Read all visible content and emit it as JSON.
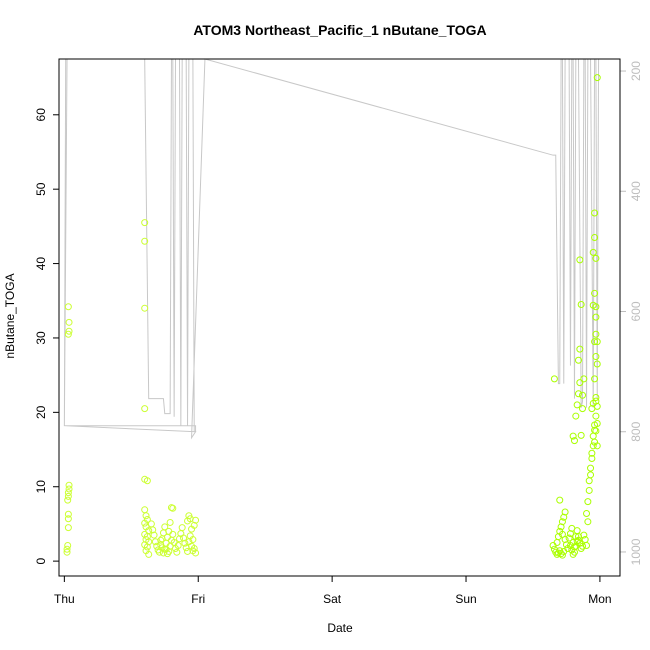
{
  "chart_data": {
    "type": "scatter",
    "title": "ATOM3 Northeast_Pacific_1 nButane_TOGA",
    "xlabel": "Date",
    "ylabel": "nButane_TOGA",
    "x_ticks": [
      "Thu",
      "Fri",
      "Sat",
      "Sun",
      "Mon"
    ],
    "x_tick_values": [
      0,
      1,
      2,
      3,
      4
    ],
    "xlim": [
      -0.04,
      4.15
    ],
    "ylim": [
      -2,
      67.5
    ],
    "y_ticks": [
      0,
      10,
      20,
      30,
      40,
      50,
      60
    ],
    "y2_ticks": [
      200,
      400,
      600,
      800,
      1000
    ],
    "y2lim": [
      1040,
      180
    ],
    "grid": false,
    "colors": {
      "point_stroke": "#aaff00",
      "point_stroke_alt": "#ccff33",
      "secondary_line": "#c8c8c8",
      "secondary_axis": "#bdbdbd"
    },
    "series": [
      {
        "type": "scatter",
        "x_unit": "days since Thu 00:00",
        "points": [
          [
            0.02,
            1.2
          ],
          [
            0.02,
            1.6
          ],
          [
            0.025,
            2.1
          ],
          [
            0.03,
            4.5
          ],
          [
            0.03,
            5.7
          ],
          [
            0.03,
            6.3
          ],
          [
            0.025,
            8.2
          ],
          [
            0.03,
            8.7
          ],
          [
            0.03,
            9.2
          ],
          [
            0.035,
            9.7
          ],
          [
            0.035,
            10.2
          ],
          [
            0.03,
            30.5
          ],
          [
            0.035,
            30.9
          ],
          [
            0.035,
            32.1
          ],
          [
            0.03,
            34.2
          ],
          [
            0.6,
            45.5
          ],
          [
            0.6,
            43.0
          ],
          [
            0.6,
            34.0
          ],
          [
            0.6,
            20.5
          ],
          [
            0.6,
            11.0
          ],
          [
            0.62,
            10.8
          ],
          [
            0.6,
            6.9
          ],
          [
            0.61,
            6.1
          ],
          [
            0.62,
            5.6
          ],
          [
            0.6,
            5.1
          ],
          [
            0.61,
            4.6
          ],
          [
            0.63,
            4.1
          ],
          [
            0.6,
            3.6
          ],
          [
            0.62,
            3.3
          ],
          [
            0.61,
            2.9
          ],
          [
            0.63,
            2.6
          ],
          [
            0.6,
            2.2
          ],
          [
            0.62,
            1.9
          ],
          [
            0.61,
            1.4
          ],
          [
            0.63,
            0.9
          ],
          [
            0.65,
            5.0
          ],
          [
            0.66,
            4.2
          ],
          [
            0.67,
            3.5
          ],
          [
            0.68,
            2.6
          ],
          [
            0.69,
            2.0
          ],
          [
            0.7,
            1.5
          ],
          [
            0.71,
            1.2
          ],
          [
            0.72,
            2.2
          ],
          [
            0.73,
            3.0
          ],
          [
            0.74,
            3.8
          ],
          [
            0.75,
            4.6
          ],
          [
            0.72,
            2.8
          ],
          [
            0.73,
            1.8
          ],
          [
            0.74,
            1.1
          ],
          [
            0.75,
            1.6
          ],
          [
            0.76,
            2.4
          ],
          [
            0.77,
            3.2
          ],
          [
            0.78,
            4.0
          ],
          [
            0.79,
            5.2
          ],
          [
            0.8,
            7.2
          ],
          [
            0.81,
            7.1
          ],
          [
            0.76,
            1.6
          ],
          [
            0.77,
            1.0
          ],
          [
            0.78,
            1.3
          ],
          [
            0.79,
            2.0
          ],
          [
            0.8,
            2.8
          ],
          [
            0.81,
            3.6
          ],
          [
            0.82,
            2.5
          ],
          [
            0.83,
            1.7
          ],
          [
            0.84,
            1.2
          ],
          [
            0.85,
            2.1
          ],
          [
            0.86,
            3.0
          ],
          [
            0.87,
            3.7
          ],
          [
            0.88,
            4.5
          ],
          [
            0.89,
            3.1
          ],
          [
            0.9,
            2.4
          ],
          [
            0.91,
            1.8
          ],
          [
            0.92,
            1.3
          ],
          [
            0.93,
            2.6
          ],
          [
            0.94,
            3.4
          ],
          [
            0.95,
            4.3
          ],
          [
            0.92,
            5.4
          ],
          [
            0.93,
            6.1
          ],
          [
            0.94,
            5.7
          ],
          [
            0.95,
            2.0
          ],
          [
            0.96,
            1.4
          ],
          [
            0.97,
            1.7
          ],
          [
            0.98,
            1.1
          ],
          [
            0.96,
            2.9
          ],
          [
            0.97,
            4.8
          ],
          [
            0.98,
            5.5
          ],
          [
            3.66,
            24.5
          ],
          [
            3.65,
            2.1
          ],
          [
            3.66,
            1.6
          ],
          [
            3.67,
            1.2
          ],
          [
            3.68,
            0.9
          ],
          [
            3.69,
            1.1
          ],
          [
            3.7,
            1.4
          ],
          [
            3.71,
            1.0
          ],
          [
            3.72,
            0.8
          ],
          [
            3.73,
            1.3
          ],
          [
            3.68,
            2.5
          ],
          [
            3.69,
            3.3
          ],
          [
            3.7,
            4.0
          ],
          [
            3.71,
            4.6
          ],
          [
            3.72,
            5.3
          ],
          [
            3.73,
            5.9
          ],
          [
            3.74,
            6.6
          ],
          [
            3.7,
            8.2
          ],
          [
            3.72,
            3.6
          ],
          [
            3.74,
            2.9
          ],
          [
            3.75,
            2.2
          ],
          [
            3.76,
            1.7
          ],
          [
            3.77,
            3.1
          ],
          [
            3.78,
            3.7
          ],
          [
            3.79,
            4.4
          ],
          [
            3.8,
            2.5
          ],
          [
            3.81,
            1.9
          ],
          [
            3.82,
            3.3
          ],
          [
            3.83,
            4.1
          ],
          [
            3.84,
            2.8
          ],
          [
            3.78,
            2.1
          ],
          [
            3.79,
            1.5
          ],
          [
            3.8,
            0.9
          ],
          [
            3.81,
            1.2
          ],
          [
            3.82,
            2.0
          ],
          [
            3.83,
            2.7
          ],
          [
            3.84,
            3.3
          ],
          [
            3.85,
            2.4
          ],
          [
            3.86,
            1.7
          ],
          [
            3.87,
            2.0
          ],
          [
            3.8,
            16.8
          ],
          [
            3.81,
            16.2
          ],
          [
            3.82,
            19.5
          ],
          [
            3.83,
            21.0
          ],
          [
            3.84,
            22.5
          ],
          [
            3.85,
            24.0
          ],
          [
            3.86,
            16.9
          ],
          [
            3.87,
            20.5
          ],
          [
            3.84,
            27.0
          ],
          [
            3.85,
            28.5
          ],
          [
            3.86,
            34.5
          ],
          [
            3.85,
            40.5
          ],
          [
            3.87,
            22.3
          ],
          [
            3.88,
            24.5
          ],
          [
            3.88,
            3.5
          ],
          [
            3.89,
            2.9
          ],
          [
            3.9,
            2.1
          ],
          [
            3.91,
            5.3
          ],
          [
            3.9,
            6.4
          ],
          [
            3.91,
            8.0
          ],
          [
            3.92,
            9.5
          ],
          [
            3.92,
            10.8
          ],
          [
            3.93,
            11.6
          ],
          [
            3.93,
            12.5
          ],
          [
            3.94,
            13.8
          ],
          [
            3.94,
            14.5
          ],
          [
            3.95,
            15.5
          ],
          [
            3.95,
            16.8
          ],
          [
            3.96,
            17.6
          ],
          [
            3.96,
            18.3
          ],
          [
            3.94,
            20.5
          ],
          [
            3.95,
            21.2
          ],
          [
            3.96,
            24.5
          ],
          [
            3.97,
            27.5
          ],
          [
            3.96,
            29.5
          ],
          [
            3.97,
            32.8
          ],
          [
            3.95,
            34.4
          ],
          [
            3.96,
            36.0
          ],
          [
            3.97,
            34.2
          ],
          [
            3.95,
            41.5
          ],
          [
            3.96,
            43.5
          ],
          [
            3.97,
            40.7
          ],
          [
            3.96,
            46.8
          ],
          [
            3.98,
            65.0
          ],
          [
            3.97,
            30.5
          ],
          [
            3.98,
            29.5
          ],
          [
            3.98,
            26.5
          ],
          [
            3.97,
            21.5
          ],
          [
            3.98,
            20.8
          ],
          [
            3.97,
            17.5
          ],
          [
            3.98,
            18.5
          ],
          [
            3.97,
            19.5
          ],
          [
            3.96,
            16.0
          ],
          [
            3.98,
            15.5
          ],
          [
            3.97,
            22.0
          ]
        ]
      },
      {
        "type": "line",
        "name": "",
        "axis": "right",
        "x_unit": "days since Thu 00:00",
        "points": [
          [
            0.01,
            180
          ],
          [
            0.0,
            790
          ],
          [
            0.98,
            790
          ],
          [
            0.98,
            800
          ],
          [
            0.0,
            790
          ],
          [
            0.02,
            180
          ],
          [
            0.6,
            180
          ],
          [
            0.63,
            745
          ],
          [
            0.74,
            745
          ],
          [
            0.75,
            770
          ],
          [
            0.79,
            770
          ],
          [
            0.8,
            180
          ],
          [
            0.81,
            180
          ],
          [
            0.82,
            775
          ],
          [
            0.83,
            180
          ],
          [
            0.86,
            180
          ],
          [
            0.87,
            790
          ],
          [
            0.88,
            180
          ],
          [
            0.91,
            180
          ],
          [
            0.92,
            790
          ],
          [
            0.93,
            180
          ],
          [
            0.96,
            180
          ],
          [
            0.97,
            800
          ],
          [
            0.98,
            800
          ],
          [
            0.95,
            810
          ],
          [
            1.05,
            180
          ],
          [
            3.65,
            340
          ],
          [
            3.67,
            340
          ],
          [
            3.69,
            720
          ],
          [
            3.7,
            720
          ],
          [
            3.71,
            180
          ],
          [
            3.72,
            180
          ],
          [
            3.73,
            720
          ],
          [
            3.74,
            180
          ],
          [
            3.77,
            180
          ],
          [
            3.78,
            690
          ],
          [
            3.79,
            180
          ],
          [
            3.8,
            180
          ],
          [
            3.81,
            745
          ],
          [
            3.82,
            180
          ],
          [
            3.84,
            180
          ],
          [
            3.86,
            760
          ],
          [
            3.87,
            750
          ],
          [
            3.88,
            180
          ],
          [
            3.89,
            180
          ],
          [
            3.9,
            760
          ],
          [
            3.91,
            180
          ],
          [
            3.93,
            180
          ],
          [
            3.95,
            760
          ],
          [
            3.96,
            180
          ],
          [
            3.97,
            180
          ],
          [
            3.98,
            745
          ],
          [
            3.99,
            180
          ]
        ]
      }
    ]
  }
}
